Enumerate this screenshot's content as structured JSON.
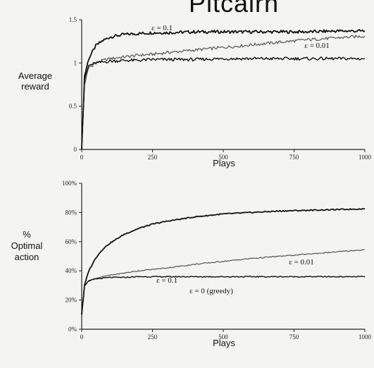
{
  "header": {
    "text": "Pitcairn"
  },
  "chart_data": [
    {
      "type": "line",
      "title": "",
      "ylabel_lines": [
        "Average",
        "reward"
      ],
      "xlabel": "Plays",
      "xlim": [
        0,
        1000
      ],
      "ylim": [
        0,
        1.5
      ],
      "xticks": [
        0,
        250,
        500,
        750,
        1000
      ],
      "xtick_labels": [
        "0",
        "250",
        "500",
        "750",
        "1000"
      ],
      "yticks": [
        0,
        0.5,
        1,
        1.5
      ],
      "ytick_labels": [
        "0",
        "0.5",
        "1",
        "1.5"
      ],
      "annotations": [
        "ε = 0.1",
        "ε = 0.01"
      ],
      "series": [
        {
          "label": "ε = 0.1",
          "x": [
            0,
            10,
            25,
            50,
            75,
            100,
            150,
            200,
            250,
            300,
            400,
            500,
            600,
            700,
            800,
            900,
            1000
          ],
          "y": [
            0,
            0.85,
            1.05,
            1.2,
            1.26,
            1.3,
            1.33,
            1.34,
            1.35,
            1.35,
            1.36,
            1.36,
            1.36,
            1.36,
            1.36,
            1.37,
            1.37
          ]
        },
        {
          "label": "ε = 0.01",
          "x": [
            0,
            10,
            25,
            50,
            75,
            100,
            150,
            200,
            250,
            300,
            400,
            500,
            600,
            700,
            800,
            900,
            1000
          ],
          "y": [
            0,
            0.75,
            0.95,
            1.0,
            1.03,
            1.05,
            1.07,
            1.09,
            1.1,
            1.12,
            1.15,
            1.18,
            1.21,
            1.24,
            1.27,
            1.29,
            1.31
          ]
        },
        {
          "label": "ε = 0 (greedy)",
          "x": [
            0,
            10,
            25,
            50,
            75,
            100,
            150,
            200,
            250,
            300,
            400,
            500,
            600,
            700,
            800,
            900,
            1000
          ],
          "y": [
            0,
            0.8,
            0.97,
            1.0,
            1.01,
            1.02,
            1.03,
            1.03,
            1.04,
            1.04,
            1.04,
            1.05,
            1.05,
            1.05,
            1.05,
            1.05,
            1.05
          ]
        }
      ]
    },
    {
      "type": "line",
      "title": "",
      "ylabel_lines": [
        "%",
        "Optimal",
        "action"
      ],
      "xlabel": "Plays",
      "xlim": [
        0,
        1000
      ],
      "ylim": [
        0,
        100
      ],
      "xticks": [
        0,
        250,
        500,
        750,
        1000
      ],
      "xtick_labels": [
        "0",
        "250",
        "500",
        "750",
        "1000"
      ],
      "yticks": [
        0,
        20,
        40,
        60,
        80,
        100
      ],
      "ytick_labels": [
        "0%",
        "20%",
        "40%",
        "60%",
        "80%",
        "100%"
      ],
      "series": [
        {
          "label": "ε = 0.1",
          "x": [
            0,
            10,
            25,
            50,
            75,
            100,
            150,
            200,
            250,
            300,
            400,
            500,
            600,
            700,
            800,
            900,
            1000
          ],
          "y": [
            10,
            30,
            40,
            49,
            55,
            59,
            65,
            69,
            72,
            74,
            77,
            79,
            80,
            81,
            81.5,
            82,
            82.5
          ]
        },
        {
          "label": "ε = 0.01",
          "x": [
            0,
            10,
            25,
            50,
            75,
            100,
            150,
            200,
            250,
            300,
            400,
            500,
            600,
            700,
            800,
            900,
            1000
          ],
          "y": [
            10,
            30,
            33,
            35,
            36,
            37,
            38.5,
            40,
            41,
            42,
            44.5,
            46.5,
            48.5,
            50,
            51.5,
            53,
            54.5
          ]
        },
        {
          "label": "ε = 0 (greedy)",
          "x": [
            0,
            10,
            25,
            50,
            75,
            100,
            150,
            200,
            250,
            300,
            400,
            500,
            600,
            700,
            800,
            900,
            1000
          ],
          "y": [
            10,
            30,
            33,
            34.5,
            35,
            35.5,
            35.5,
            36,
            36,
            36,
            36,
            36,
            36,
            36,
            36,
            36,
            36
          ]
        }
      ]
    }
  ],
  "style": {
    "line_dark": "#111111",
    "line_gray": "#555555",
    "line_light": "#777777"
  }
}
